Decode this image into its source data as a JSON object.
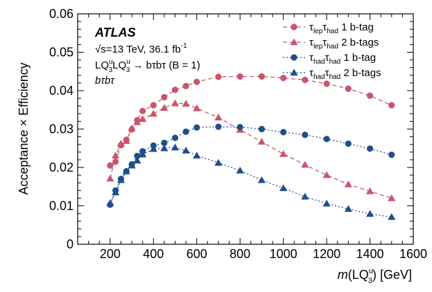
{
  "chart_data": {
    "type": "line",
    "title": "",
    "xlabel": {
      "prefix": "m",
      "lq": "LQ",
      "sup": "u",
      "sub": "3",
      "unit": "[GeV]"
    },
    "ylabel": "Acceptance × Efficiency",
    "xlim": [
      50,
      1600
    ],
    "ylim": [
      0,
      0.06
    ],
    "xticks": [
      "200",
      "400",
      "600",
      "800",
      "1000",
      "1200",
      "1400",
      "1600"
    ],
    "xtick_values": [
      200,
      400,
      600,
      800,
      1000,
      1200,
      1400,
      1600
    ],
    "yticks": [
      "0",
      "0.01",
      "0.02",
      "0.03",
      "0.04",
      "0.05",
      "0.06"
    ],
    "ytick_values": [
      0,
      0.01,
      0.02,
      0.03,
      0.04,
      0.05,
      0.06
    ],
    "annotations": {
      "experiment": "ATLAS",
      "energy": "√s=13 TeV, 36.1 fb",
      "energy_sup": "-1",
      "process": "LQ LQ → bτbτ (B = 1)",
      "process_sup": "u",
      "process_sub": "3",
      "channel": "bτbτ"
    },
    "legend_position": "top-right",
    "series": [
      {
        "name": "τlepτhad 1 b-tag",
        "label_a": "τ",
        "sub_a": "lep",
        "label_b": "τ",
        "sub_b": "had",
        "tag": " 1 b-tag",
        "color": "#c8566a",
        "marker": "circle",
        "dash": "6,4",
        "x": [
          200,
          225,
          250,
          275,
          300,
          325,
          350,
          400,
          450,
          500,
          550,
          600,
          700,
          800,
          900,
          1000,
          1100,
          1200,
          1300,
          1400,
          1500
        ],
        "values": [
          0.0205,
          0.0215,
          0.0258,
          0.0272,
          0.0299,
          0.0323,
          0.0347,
          0.0362,
          0.0383,
          0.0402,
          0.0412,
          0.0423,
          0.0436,
          0.0437,
          0.0437,
          0.0433,
          0.0428,
          0.0418,
          0.0405,
          0.0387,
          0.0362
        ]
      },
      {
        "name": "τlepτhad 2 b-tags",
        "label_a": "τ",
        "sub_a": "lep",
        "label_b": "τ",
        "sub_b": "had",
        "tag": " 2 b-tags",
        "color": "#c8566a",
        "marker": "triangle",
        "dash": "6,4",
        "x": [
          200,
          225,
          250,
          275,
          300,
          325,
          350,
          400,
          450,
          500,
          550,
          600,
          700,
          800,
          900,
          1000,
          1100,
          1200,
          1300,
          1400,
          1500
        ],
        "values": [
          0.0171,
          0.0231,
          0.0262,
          0.0269,
          0.0302,
          0.0318,
          0.0326,
          0.034,
          0.0355,
          0.0367,
          0.0366,
          0.0354,
          0.033,
          0.0298,
          0.0267,
          0.0235,
          0.0207,
          0.018,
          0.0156,
          0.0138,
          0.012
        ]
      },
      {
        "name": "τhadτhad 1 b-tag",
        "label_a": "τ",
        "sub_a": "had",
        "label_b": "τ",
        "sub_b": "had",
        "tag": " 1 b-tag",
        "color": "#1f4e8c",
        "marker": "circle",
        "dash": "2,3",
        "x": [
          200,
          225,
          250,
          275,
          300,
          325,
          350,
          400,
          450,
          500,
          550,
          600,
          700,
          800,
          900,
          1000,
          1100,
          1200,
          1300,
          1400,
          1500
        ],
        "values": [
          0.0103,
          0.014,
          0.017,
          0.019,
          0.0208,
          0.023,
          0.0242,
          0.0257,
          0.0264,
          0.0277,
          0.0293,
          0.0304,
          0.0306,
          0.0305,
          0.03,
          0.0292,
          0.0285,
          0.0274,
          0.0262,
          0.0249,
          0.0233
        ]
      },
      {
        "name": "τhadτhad 2 b-tags",
        "label_a": "τ",
        "sub_a": "had",
        "label_b": "τ",
        "sub_b": "had",
        "tag": " 2 b-tags",
        "color": "#1f4e8c",
        "marker": "triangle",
        "dash": "2,3",
        "x": [
          200,
          225,
          250,
          275,
          300,
          325,
          350,
          400,
          450,
          500,
          550,
          600,
          700,
          800,
          900,
          1000,
          1100,
          1200,
          1300,
          1400,
          1500
        ],
        "values": [
          0.0107,
          0.0135,
          0.0167,
          0.019,
          0.0205,
          0.0218,
          0.0234,
          0.0248,
          0.025,
          0.0252,
          0.0244,
          0.0231,
          0.0212,
          0.0192,
          0.0167,
          0.0146,
          0.0124,
          0.0106,
          0.0092,
          0.0079,
          0.0071
        ]
      }
    ]
  }
}
